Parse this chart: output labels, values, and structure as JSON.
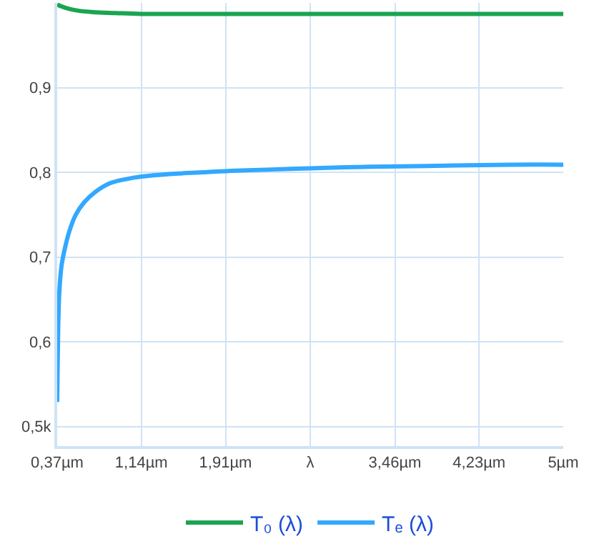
{
  "chart_data": {
    "type": "line",
    "xlim": [
      0.37,
      5
    ],
    "ylim": [
      0.477,
      1.0
    ],
    "xticks": [
      {
        "value": 0.37,
        "label": "0,37µm"
      },
      {
        "value": 1.14,
        "label": "1,14µm"
      },
      {
        "value": 1.91,
        "label": "1,91µm"
      },
      {
        "value": 2.685,
        "label": "λ"
      },
      {
        "value": 3.46,
        "label": "3,46µm"
      },
      {
        "value": 4.23,
        "label": "4,23µm"
      },
      {
        "value": 5,
        "label": "5µm"
      }
    ],
    "yticks": [
      {
        "value": 0.5,
        "label": "0,5k"
      },
      {
        "value": 0.6,
        "label": "0,6"
      },
      {
        "value": 0.7,
        "label": "0,7"
      },
      {
        "value": 0.8,
        "label": "0,8"
      },
      {
        "value": 0.9,
        "label": "0,9"
      }
    ],
    "grid": true,
    "legend": "bottom",
    "marker": "none",
    "line_style": "solid",
    "series": [
      {
        "name": "T₀ (λ)",
        "color": "#1aa550",
        "x": [
          0.37,
          0.45,
          0.55,
          0.7,
          0.9,
          1.14,
          2,
          3,
          4,
          5
        ],
        "values": [
          0.998,
          0.994,
          0.991,
          0.989,
          0.988,
          0.987,
          0.987,
          0.987,
          0.987,
          0.987
        ]
      },
      {
        "name": "Tₑ (λ)",
        "color": "#33a8ff",
        "x": [
          0.37,
          0.375,
          0.38,
          0.39,
          0.41,
          0.44,
          0.48,
          0.54,
          0.62,
          0.72,
          0.85,
          1.0,
          1.14,
          1.4,
          1.7,
          2.0,
          2.5,
          3.0,
          3.5,
          4.0,
          4.5,
          5.0
        ],
        "values": [
          0.529,
          0.58,
          0.62,
          0.66,
          0.69,
          0.71,
          0.73,
          0.75,
          0.765,
          0.777,
          0.787,
          0.792,
          0.795,
          0.798,
          0.8,
          0.802,
          0.804,
          0.806,
          0.807,
          0.808,
          0.809,
          0.809
        ]
      }
    ]
  }
}
